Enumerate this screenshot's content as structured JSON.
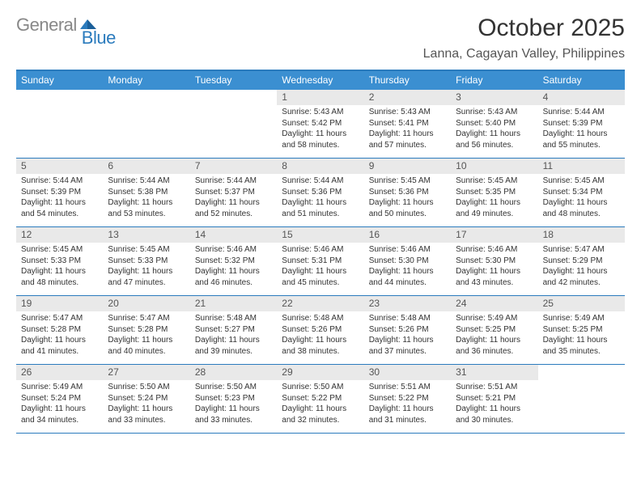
{
  "brand": {
    "part1": "General",
    "part2": "Blue"
  },
  "title": "October 2025",
  "location": "Lanna, Cagayan Valley, Philippines",
  "colors": {
    "header_bg": "#3b8fd1",
    "accent": "#2b7bbd",
    "daynum_bg": "#e9e9e9",
    "text": "#333333"
  },
  "dow": [
    "Sunday",
    "Monday",
    "Tuesday",
    "Wednesday",
    "Thursday",
    "Friday",
    "Saturday"
  ],
  "weeks": [
    [
      {
        "n": "",
        "sr": "",
        "ss": "",
        "dl": ""
      },
      {
        "n": "",
        "sr": "",
        "ss": "",
        "dl": ""
      },
      {
        "n": "",
        "sr": "",
        "ss": "",
        "dl": ""
      },
      {
        "n": "1",
        "sr": "5:43 AM",
        "ss": "5:42 PM",
        "dl": "11 hours and 58 minutes."
      },
      {
        "n": "2",
        "sr": "5:43 AM",
        "ss": "5:41 PM",
        "dl": "11 hours and 57 minutes."
      },
      {
        "n": "3",
        "sr": "5:43 AM",
        "ss": "5:40 PM",
        "dl": "11 hours and 56 minutes."
      },
      {
        "n": "4",
        "sr": "5:44 AM",
        "ss": "5:39 PM",
        "dl": "11 hours and 55 minutes."
      }
    ],
    [
      {
        "n": "5",
        "sr": "5:44 AM",
        "ss": "5:39 PM",
        "dl": "11 hours and 54 minutes."
      },
      {
        "n": "6",
        "sr": "5:44 AM",
        "ss": "5:38 PM",
        "dl": "11 hours and 53 minutes."
      },
      {
        "n": "7",
        "sr": "5:44 AM",
        "ss": "5:37 PM",
        "dl": "11 hours and 52 minutes."
      },
      {
        "n": "8",
        "sr": "5:44 AM",
        "ss": "5:36 PM",
        "dl": "11 hours and 51 minutes."
      },
      {
        "n": "9",
        "sr": "5:45 AM",
        "ss": "5:36 PM",
        "dl": "11 hours and 50 minutes."
      },
      {
        "n": "10",
        "sr": "5:45 AM",
        "ss": "5:35 PM",
        "dl": "11 hours and 49 minutes."
      },
      {
        "n": "11",
        "sr": "5:45 AM",
        "ss": "5:34 PM",
        "dl": "11 hours and 48 minutes."
      }
    ],
    [
      {
        "n": "12",
        "sr": "5:45 AM",
        "ss": "5:33 PM",
        "dl": "11 hours and 48 minutes."
      },
      {
        "n": "13",
        "sr": "5:45 AM",
        "ss": "5:33 PM",
        "dl": "11 hours and 47 minutes."
      },
      {
        "n": "14",
        "sr": "5:46 AM",
        "ss": "5:32 PM",
        "dl": "11 hours and 46 minutes."
      },
      {
        "n": "15",
        "sr": "5:46 AM",
        "ss": "5:31 PM",
        "dl": "11 hours and 45 minutes."
      },
      {
        "n": "16",
        "sr": "5:46 AM",
        "ss": "5:30 PM",
        "dl": "11 hours and 44 minutes."
      },
      {
        "n": "17",
        "sr": "5:46 AM",
        "ss": "5:30 PM",
        "dl": "11 hours and 43 minutes."
      },
      {
        "n": "18",
        "sr": "5:47 AM",
        "ss": "5:29 PM",
        "dl": "11 hours and 42 minutes."
      }
    ],
    [
      {
        "n": "19",
        "sr": "5:47 AM",
        "ss": "5:28 PM",
        "dl": "11 hours and 41 minutes."
      },
      {
        "n": "20",
        "sr": "5:47 AM",
        "ss": "5:28 PM",
        "dl": "11 hours and 40 minutes."
      },
      {
        "n": "21",
        "sr": "5:48 AM",
        "ss": "5:27 PM",
        "dl": "11 hours and 39 minutes."
      },
      {
        "n": "22",
        "sr": "5:48 AM",
        "ss": "5:26 PM",
        "dl": "11 hours and 38 minutes."
      },
      {
        "n": "23",
        "sr": "5:48 AM",
        "ss": "5:26 PM",
        "dl": "11 hours and 37 minutes."
      },
      {
        "n": "24",
        "sr": "5:49 AM",
        "ss": "5:25 PM",
        "dl": "11 hours and 36 minutes."
      },
      {
        "n": "25",
        "sr": "5:49 AM",
        "ss": "5:25 PM",
        "dl": "11 hours and 35 minutes."
      }
    ],
    [
      {
        "n": "26",
        "sr": "5:49 AM",
        "ss": "5:24 PM",
        "dl": "11 hours and 34 minutes."
      },
      {
        "n": "27",
        "sr": "5:50 AM",
        "ss": "5:24 PM",
        "dl": "11 hours and 33 minutes."
      },
      {
        "n": "28",
        "sr": "5:50 AM",
        "ss": "5:23 PM",
        "dl": "11 hours and 33 minutes."
      },
      {
        "n": "29",
        "sr": "5:50 AM",
        "ss": "5:22 PM",
        "dl": "11 hours and 32 minutes."
      },
      {
        "n": "30",
        "sr": "5:51 AM",
        "ss": "5:22 PM",
        "dl": "11 hours and 31 minutes."
      },
      {
        "n": "31",
        "sr": "5:51 AM",
        "ss": "5:21 PM",
        "dl": "11 hours and 30 minutes."
      },
      {
        "n": "",
        "sr": "",
        "ss": "",
        "dl": ""
      }
    ]
  ],
  "labels": {
    "sunrise": "Sunrise:",
    "sunset": "Sunset:",
    "daylight": "Daylight:"
  }
}
